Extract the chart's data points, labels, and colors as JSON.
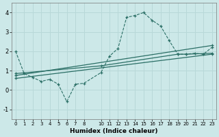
{
  "xlabel": "Humidex (Indice chaleur)",
  "bg_color": "#cce8e8",
  "grid_color": "#b8d8d8",
  "line_color": "#2a6e65",
  "ylim": [
    -1.5,
    4.5
  ],
  "xlim": [
    -0.5,
    23.5
  ],
  "yticks": [
    -1,
    0,
    1,
    2,
    3,
    4
  ],
  "xticks": [
    0,
    1,
    2,
    3,
    4,
    5,
    6,
    7,
    8,
    10,
    11,
    12,
    13,
    14,
    15,
    16,
    17,
    18,
    19,
    20,
    21,
    22,
    23
  ],
  "line1_x": [
    0,
    1,
    2,
    3,
    4,
    5,
    6,
    7,
    8,
    10,
    11,
    12,
    13,
    14,
    15,
    16,
    17,
    18,
    19,
    20,
    21,
    22,
    23
  ],
  "line1_y": [
    2.0,
    0.85,
    0.65,
    0.45,
    0.55,
    0.3,
    -0.6,
    0.3,
    0.35,
    0.9,
    1.75,
    2.15,
    3.75,
    3.85,
    4.0,
    3.6,
    3.3,
    2.55,
    1.85,
    1.85,
    1.9,
    1.85,
    2.2
  ],
  "line2_x": [
    0,
    23
  ],
  "line2_y": [
    0.75,
    2.3
  ],
  "line3_x": [
    0,
    10,
    19,
    20,
    23
  ],
  "line3_y": [
    0.85,
    1.25,
    1.85,
    1.85,
    1.9
  ],
  "line4_x": [
    0,
    23
  ],
  "line4_y": [
    0.6,
    1.85
  ]
}
